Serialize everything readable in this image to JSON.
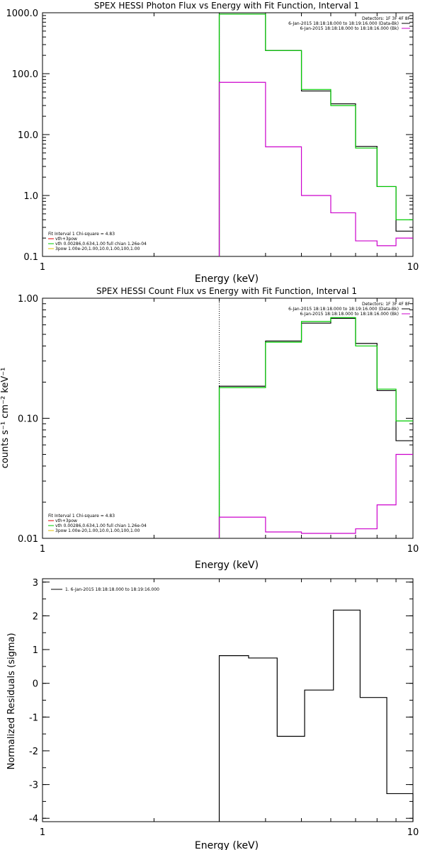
{
  "colors": {
    "black": "#000000",
    "green": "#00cc00",
    "magenta": "#cc00cc",
    "red": "#dd0000",
    "yellow": "#e0c000"
  },
  "chart_data": [
    {
      "type": "line",
      "title": "SPEX HESSI Photon Flux vs Energy with Fit Function, Interval 1",
      "xlabel": "Energy (keV)",
      "ylabel": "",
      "xscale": "log",
      "yscale": "log",
      "xlim": [
        1,
        10
      ],
      "ylim": [
        0.1,
        1000
      ],
      "xticks": [
        {
          "v": 1,
          "label": "1"
        },
        {
          "v": 10,
          "label": "10"
        }
      ],
      "yticks": [
        {
          "v": 0.1,
          "label": "0.1"
        },
        {
          "v": 1,
          "label": "1.0"
        },
        {
          "v": 10,
          "label": "10.0"
        },
        {
          "v": 100,
          "label": "100.0"
        },
        {
          "v": 1000,
          "label": "1000.0"
        }
      ],
      "bin_edges": [
        3,
        4,
        5,
        6,
        7,
        8,
        9,
        10
      ],
      "vline": 3,
      "series": [
        {
          "name": "6-Jan-2015 18:18:18.000 to 18:19:16.000 (Data-Bk)",
          "color": "black",
          "values": [
            950,
            240,
            52,
            32,
            6.4,
            1.4,
            0.26
          ]
        },
        {
          "name": "vth+3pow",
          "color": "green",
          "values": [
            950,
            240,
            55,
            30,
            6.0,
            1.4,
            0.4
          ]
        },
        {
          "name": "6-Jan-2015 18:18:18.000 to 18:18:16.000 (Bk)",
          "color": "magenta",
          "values": [
            72,
            6.3,
            1.0,
            0.52,
            0.18,
            0.15,
            0.2
          ]
        }
      ],
      "legend_right_header": "Detectors: 1F 3F 4F 8F",
      "legend_right": [
        {
          "text": "6-Jan-2015 18:18:18.000 to 18:19:16.000 (Data-Bk)",
          "color": "black"
        },
        {
          "text": "6-Jan-2015 18:18:18.000 to 18:18:16.000 (Bk)",
          "color": "magenta"
        }
      ],
      "legend_left_header": "Fit Interval  1    Chi-square = 4.83",
      "legend_left": [
        {
          "text": "vth+3pow",
          "color": "red"
        },
        {
          "text": "vth 0.00286,0.634,1.00  full chian 1.26e-04",
          "color": "green"
        },
        {
          "text": "3pow 1.00e-20,1.00,10.0,1.00,100,1.00",
          "color": "yellow"
        }
      ]
    },
    {
      "type": "line",
      "title": "SPEX HESSI Count Flux vs Energy with Fit Function, Interval 1",
      "xlabel": "Energy (keV)",
      "ylabel": "counts s⁻¹ cm⁻² keV⁻¹",
      "xscale": "log",
      "yscale": "log",
      "xlim": [
        1,
        10
      ],
      "ylim": [
        0.01,
        1
      ],
      "xticks": [
        {
          "v": 1,
          "label": "1"
        },
        {
          "v": 10,
          "label": "10"
        }
      ],
      "yticks": [
        {
          "v": 0.01,
          "label": "0.01"
        },
        {
          "v": 0.1,
          "label": "0.10"
        },
        {
          "v": 1,
          "label": "1.00"
        }
      ],
      "bin_edges": [
        3,
        4,
        5,
        6,
        7,
        8,
        9,
        10
      ],
      "vline": 3,
      "series": [
        {
          "name": "6-Jan-2015 18:18:18.000 to 18:19:16.000 (Data-Bk)",
          "color": "black",
          "values": [
            0.185,
            0.44,
            0.62,
            0.68,
            0.42,
            0.17,
            0.065
          ]
        },
        {
          "name": "vth+3pow",
          "color": "green",
          "values": [
            0.18,
            0.43,
            0.64,
            0.69,
            0.4,
            0.175,
            0.095
          ]
        },
        {
          "name": "6-Jan-2015 18:18:18.000 to 18:18:16.000 (Bk)",
          "color": "magenta",
          "values": [
            0.015,
            0.0113,
            0.011,
            0.011,
            0.012,
            0.019,
            0.05
          ]
        }
      ],
      "legend_right_header": "Detectors: 1F 3F 4F 8F",
      "legend_right": [
        {
          "text": "6-Jan-2015 18:18:18.000 to 18:19:16.000 (Data-Bk)",
          "color": "black"
        },
        {
          "text": "6-Jan-2015 18:18:18.000 to 18:18:16.000 (Bk)",
          "color": "magenta"
        }
      ],
      "legend_left_header": "Fit Interval  1    Chi-square = 4.83",
      "legend_left": [
        {
          "text": "vth+3pow",
          "color": "red"
        },
        {
          "text": "vth 0.00286,0.634,1.00  full chian 1.26e-04",
          "color": "green"
        },
        {
          "text": "3pow 1.00e-20,1.00,10.0,1.00,100,1.00",
          "color": "yellow"
        }
      ]
    },
    {
      "type": "line",
      "title": "",
      "xlabel": "Energy (keV)",
      "ylabel": "Normalized Residuals (sigma)",
      "xscale": "log",
      "yscale": "linear",
      "xlim": [
        1,
        10
      ],
      "ylim": [
        -4.1,
        3.1
      ],
      "xticks": [
        {
          "v": 1,
          "label": "1"
        },
        {
          "v": 10,
          "label": "10"
        }
      ],
      "yticks": [
        {
          "v": -4,
          "label": "-4"
        },
        {
          "v": -3,
          "label": "-3"
        },
        {
          "v": -2,
          "label": "-2"
        },
        {
          "v": -1,
          "label": "-1"
        },
        {
          "v": 0,
          "label": "0"
        },
        {
          "v": 1,
          "label": "1"
        },
        {
          "v": 2,
          "label": "2"
        },
        {
          "v": 3,
          "label": "3"
        }
      ],
      "bin_edges": [
        3,
        3.6,
        4.3,
        5.1,
        6.1,
        7.2,
        8.5,
        10
      ],
      "series": [
        {
          "name": "1.  6-Jan-2015 18:18:18.000 to 18:19:16.000",
          "color": "black",
          "values": [
            0.82,
            0.75,
            -1.57,
            -0.2,
            2.17,
            -0.42,
            -3.27
          ]
        }
      ],
      "legend_left_header": "",
      "legend_topleft": [
        {
          "text": "1.  6-Jan-2015 18:18:18.000 to 18:19:16.000",
          "color": "black"
        }
      ]
    }
  ]
}
